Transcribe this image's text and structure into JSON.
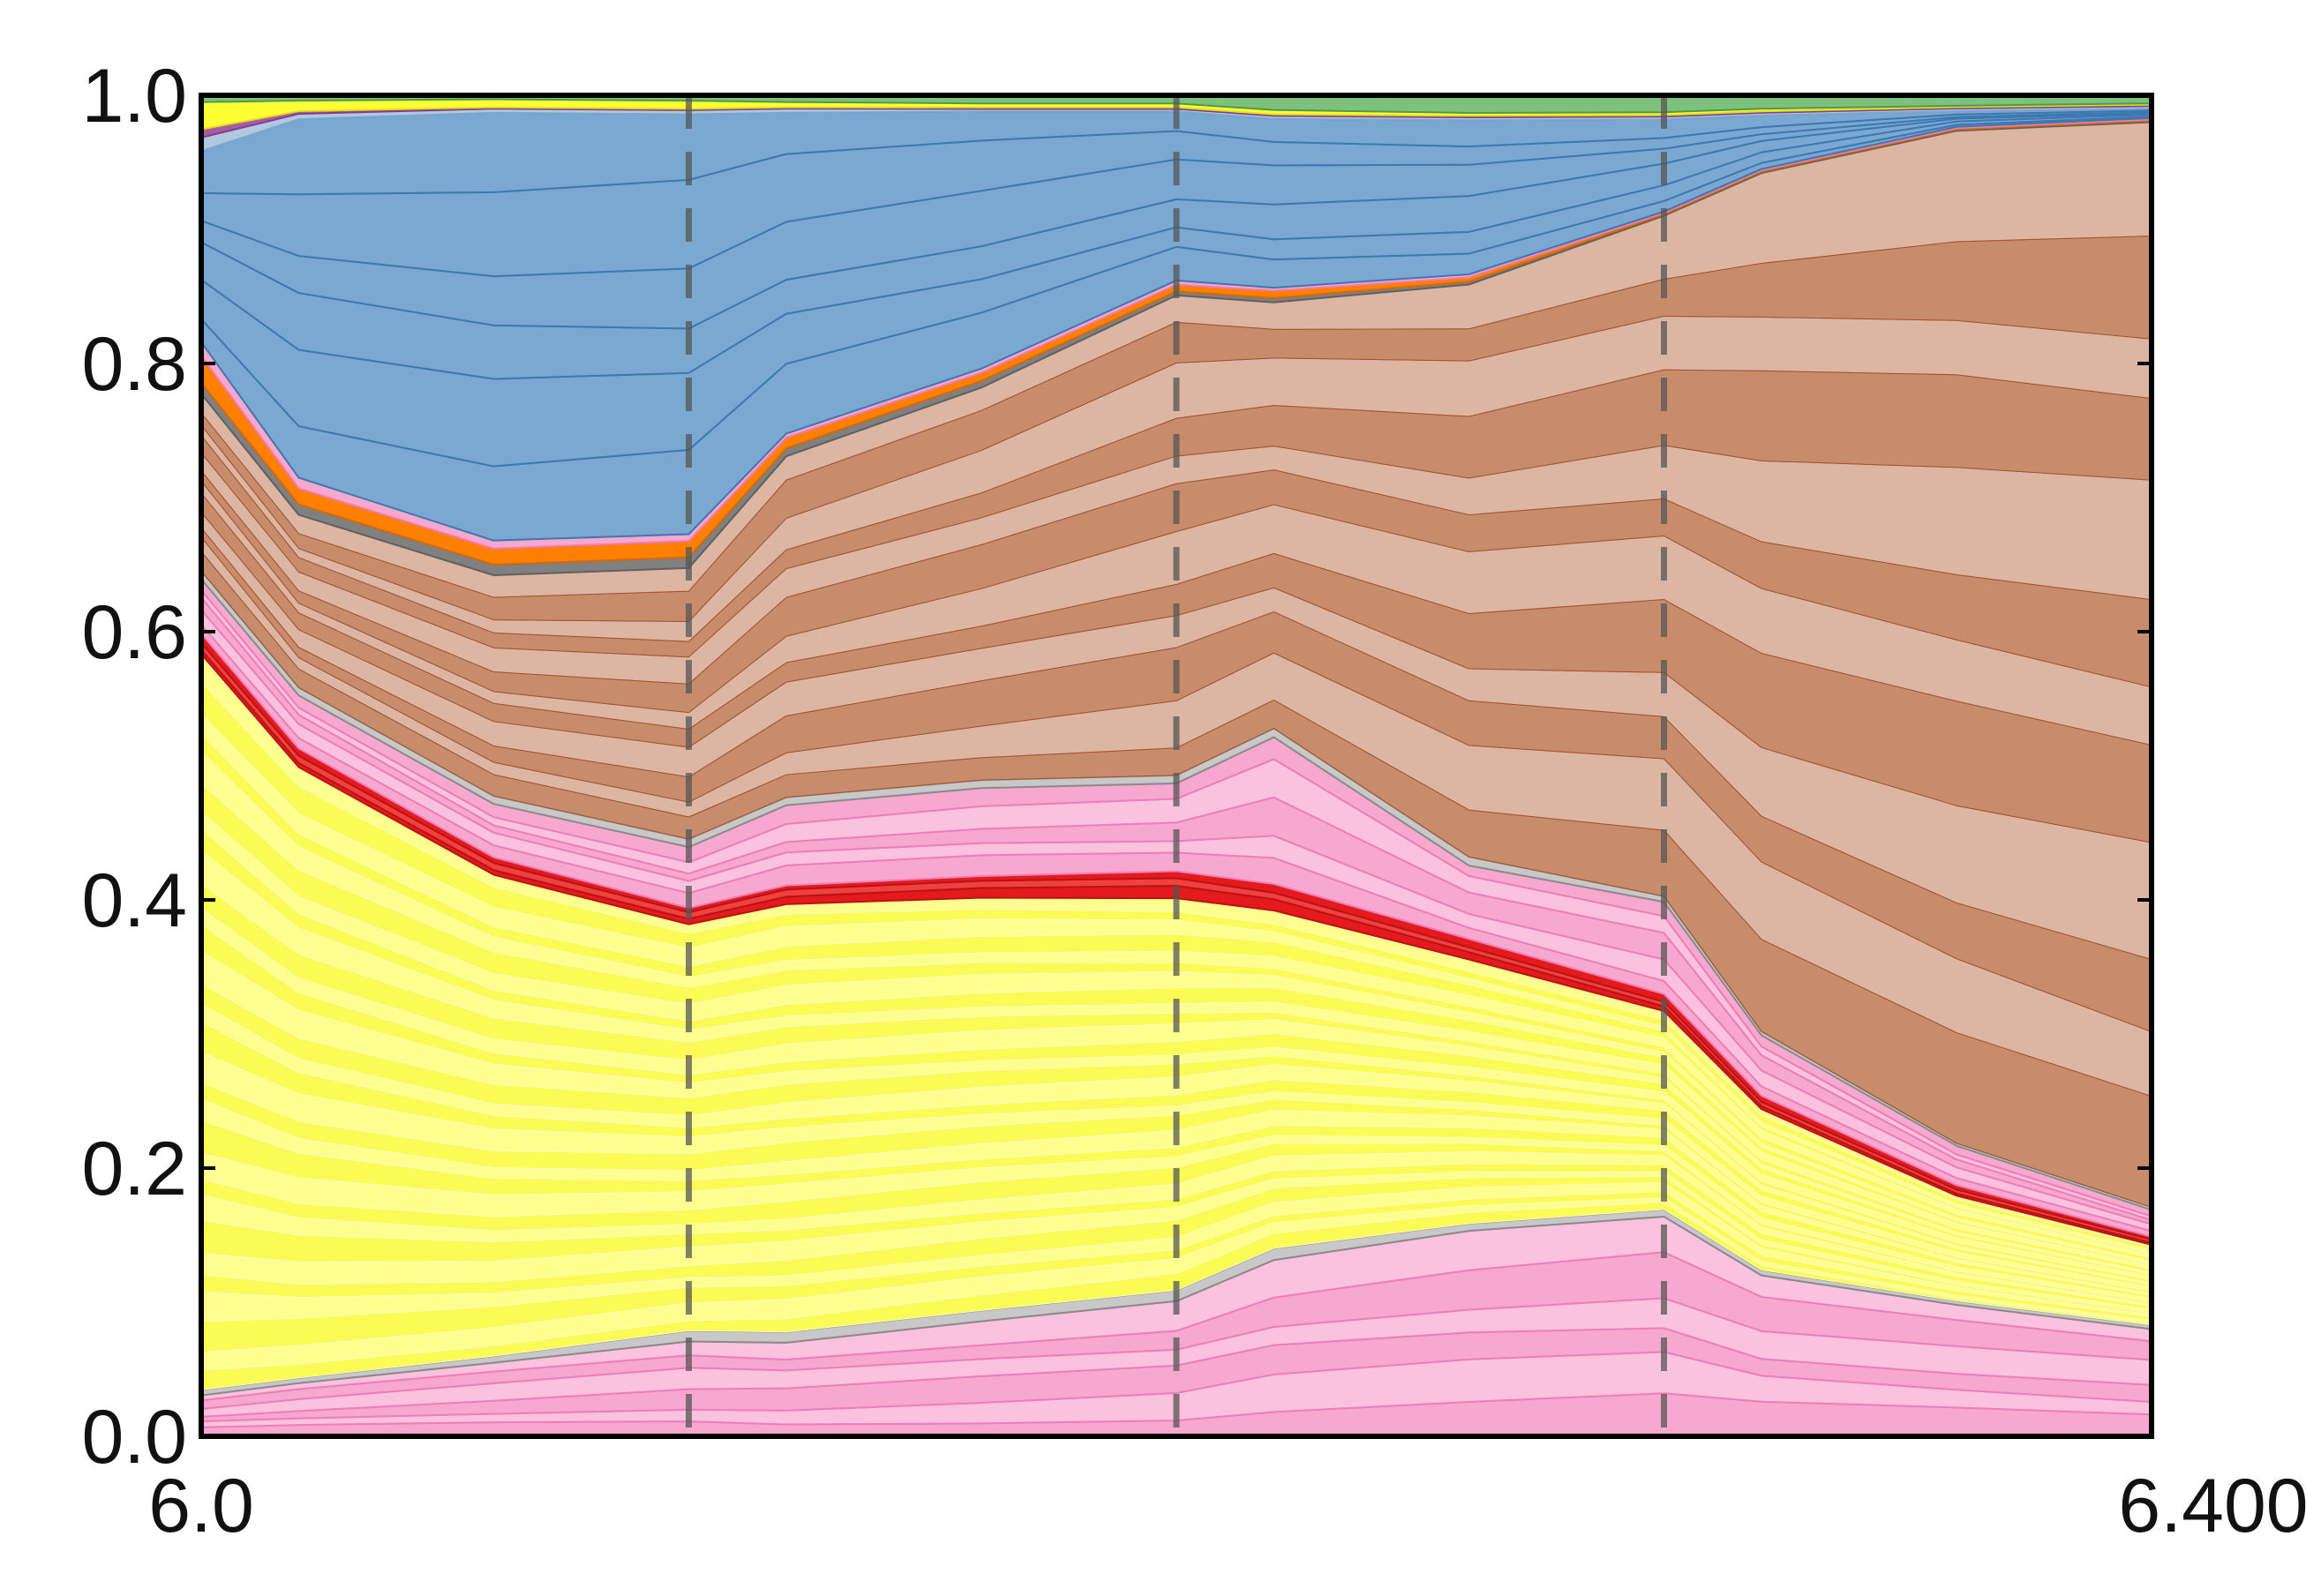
{
  "chart_data": {
    "type": "area",
    "stacked": true,
    "normalized": true,
    "xlim": [
      6.0,
      6.4
    ],
    "ylim": [
      0.0,
      1.0
    ],
    "x_tick_labels": [
      "6.0",
      "6.400"
    ],
    "y_tick_labels": [
      "0.0",
      "0.2",
      "0.4",
      "0.6",
      "0.8",
      "1.0"
    ],
    "y_ticks": [
      0.0,
      0.2,
      0.4,
      0.6,
      0.8,
      1.0
    ],
    "vlines": [
      6.1,
      6.2,
      6.3
    ],
    "x": [
      6.0,
      6.02,
      6.06,
      6.1,
      6.12,
      6.16,
      6.2,
      6.22,
      6.26,
      6.3,
      6.32,
      6.36,
      6.4
    ],
    "groups": [
      {
        "color": "#f7a8cf",
        "alt_color": "#fac2de",
        "line_color": "#ef7db8",
        "bands": 6,
        "values": [
          0.03,
          0.04,
          0.055,
          0.07,
          0.07,
          0.085,
          0.1,
          0.12,
          0.14,
          0.155,
          0.12,
          0.1,
          0.08
        ]
      },
      {
        "color": "#c8c8c8",
        "alt_color": "#c8c8c8",
        "line_color": "#8a8a8a",
        "bands": 1,
        "values": [
          0.004,
          0.004,
          0.005,
          0.008,
          0.008,
          0.008,
          0.008,
          0.008,
          0.005,
          0.005,
          0.004,
          0.003,
          0.003
        ]
      },
      {
        "color": "#fbfb55",
        "alt_color": "#ffff90",
        "line_color": "#fbfbc0",
        "bands": 30,
        "values": [
          0.54,
          0.46,
          0.36,
          0.3,
          0.32,
          0.305,
          0.29,
          0.23,
          0.18,
          0.14,
          0.12,
          0.08,
          0.06
        ]
      },
      {
        "color": "#e41a1c",
        "alt_color": "#f04040",
        "line_color": "#b81416",
        "bands": 3,
        "values": [
          0.015,
          0.014,
          0.013,
          0.012,
          0.014,
          0.016,
          0.02,
          0.018,
          0.014,
          0.012,
          0.01,
          0.008,
          0.006
        ]
      },
      {
        "color": "#f7a8cf",
        "alt_color": "#fac2de",
        "line_color": "#ef7db8",
        "bands": 5,
        "values": [
          0.04,
          0.04,
          0.04,
          0.045,
          0.06,
          0.065,
          0.065,
          0.1,
          0.05,
          0.065,
          0.045,
          0.03,
          0.02
        ]
      },
      {
        "color": "#c8c8c8",
        "alt_color": "#c8c8c8",
        "line_color": "#8a8a8a",
        "bands": 1,
        "values": [
          0.006,
          0.006,
          0.006,
          0.006,
          0.006,
          0.006,
          0.006,
          0.006,
          0.006,
          0.004,
          0.003,
          0.002,
          0.002
        ]
      },
      {
        "color": "#c68c6c",
        "alt_color": "#dcb6a2",
        "line_color": "#a3522d",
        "bands": 12,
        "values": [
          0.13,
          0.13,
          0.165,
          0.2,
          0.255,
          0.29,
          0.355,
          0.29,
          0.39,
          0.48,
          0.64,
          0.77,
          0.81
        ]
      },
      {
        "color": "#808080",
        "alt_color": "#909090",
        "line_color": "#606060",
        "bands": 1,
        "values": [
          0.008,
          0.008,
          0.008,
          0.008,
          0.006,
          0.005,
          0.003,
          0.003,
          0.002,
          0.001,
          0.001,
          0.001,
          0.001
        ]
      },
      {
        "color": "#ff7f00",
        "alt_color": "#ff9a30",
        "line_color": "#d96a00",
        "bands": 1,
        "values": [
          0.02,
          0.012,
          0.012,
          0.012,
          0.008,
          0.006,
          0.005,
          0.005,
          0.003,
          0.001,
          0.001,
          0.001,
          0.001
        ]
      },
      {
        "color": "#f7a8cf",
        "alt_color": "#fac2de",
        "line_color": "#ef7db8",
        "bands": 1,
        "values": [
          0.01,
          0.008,
          0.006,
          0.005,
          0.003,
          0.003,
          0.003,
          0.002,
          0.002,
          0.001,
          0.001,
          0.001,
          0.001
        ]
      },
      {
        "color": "#7aa8d0",
        "alt_color": "#7aa8d0",
        "line_color": "#3d78b0",
        "bands": 6,
        "values": [
          0.14,
          0.27,
          0.32,
          0.31,
          0.24,
          0.19,
          0.125,
          0.115,
          0.105,
          0.065,
          0.04,
          0.012,
          0.007
        ]
      },
      {
        "color": "#b0c8e0",
        "alt_color": "#b0c8e0",
        "line_color": "#7aa8d0",
        "bands": 1,
        "values": [
          0.01,
          0.004,
          0.003,
          0.003,
          0.003,
          0.002,
          0.002,
          0.002,
          0.002,
          0.002,
          0.002,
          0.002,
          0.002
        ]
      },
      {
        "color": "#a65ca8",
        "alt_color": "#c07fc2",
        "line_color": "#8a3a8c",
        "bands": 1,
        "values": [
          0.006,
          0.002,
          0.001,
          0.001,
          0.001,
          0.001,
          0.001,
          0.001,
          0.001,
          0.001,
          0.001,
          0.001,
          0.001
        ]
      },
      {
        "color": "#ffff33",
        "alt_color": "#ffff80",
        "line_color": "#e0e020",
        "bands": 1,
        "values": [
          0.02,
          0.008,
          0.006,
          0.006,
          0.004,
          0.003,
          0.003,
          0.003,
          0.002,
          0.002,
          0.002,
          0.001,
          0.001
        ]
      },
      {
        "color": "#7ec17e",
        "alt_color": "#9ad39a",
        "line_color": "#4d9a4d",
        "bands": 1,
        "values": [
          0.005,
          0.004,
          0.003,
          0.004,
          0.005,
          0.006,
          0.006,
          0.01,
          0.012,
          0.012,
          0.01,
          0.008,
          0.006
        ]
      }
    ]
  }
}
